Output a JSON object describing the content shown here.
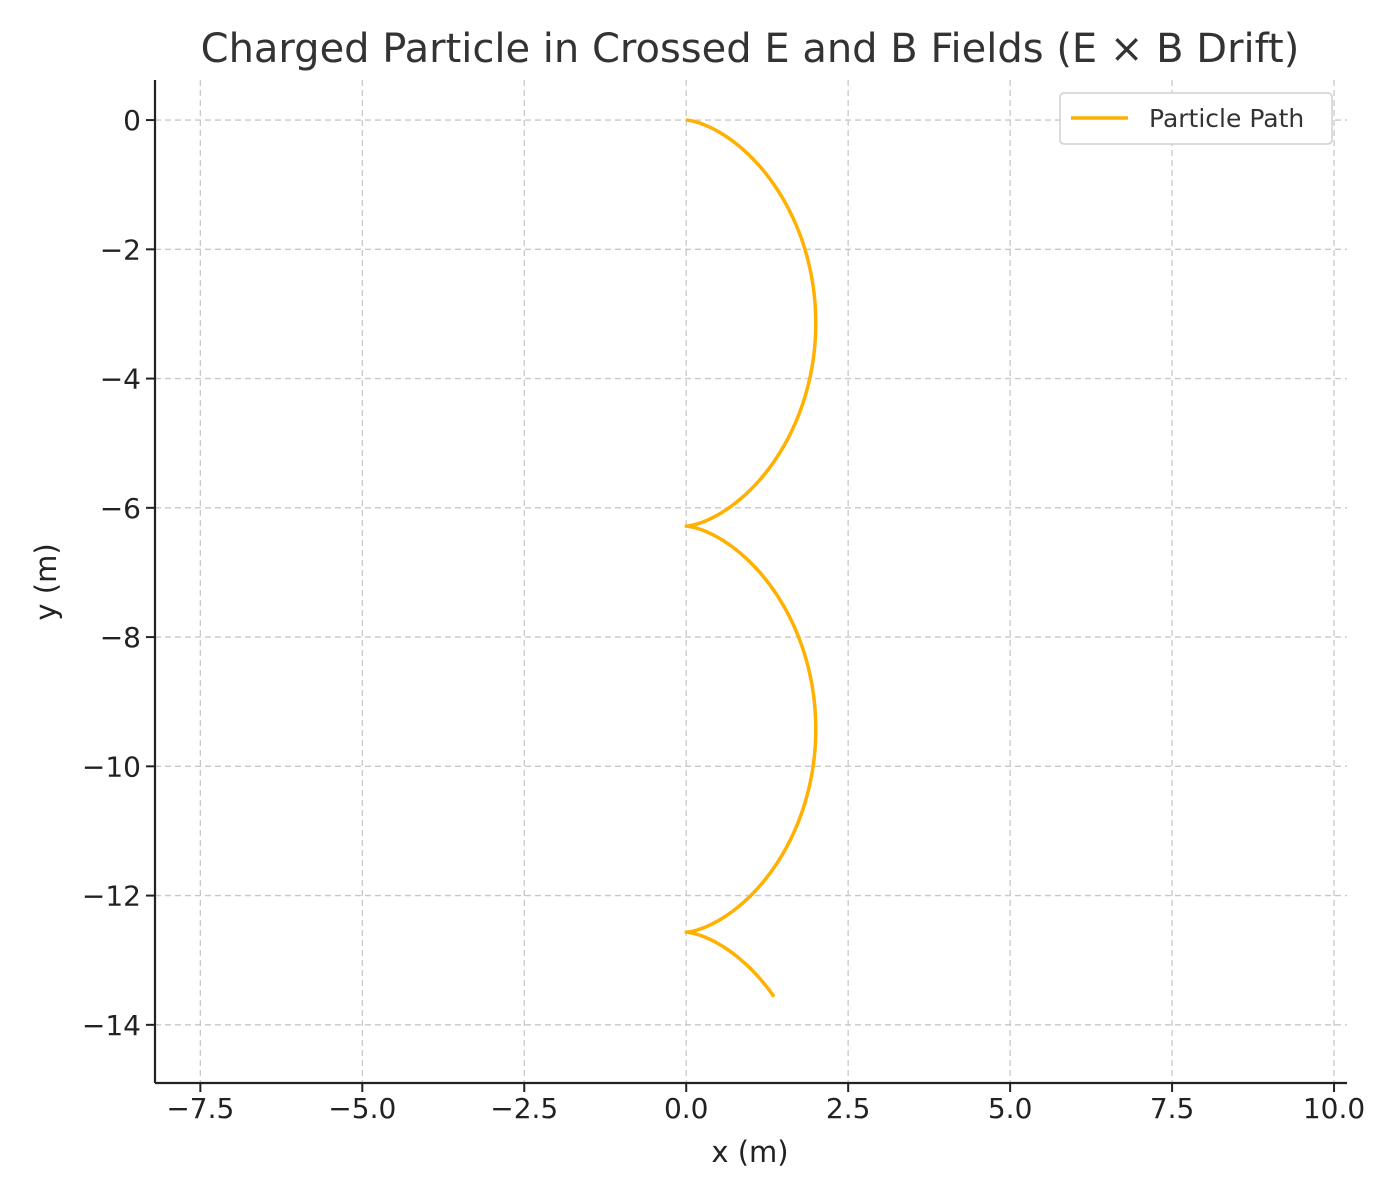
{
  "chart_data": {
    "type": "line",
    "title": "Charged Particle in Crossed E and B Fields (E × B Drift)",
    "xlabel": "x (m)",
    "ylabel": "y (m)",
    "xlim": [
      -8.2,
      10.2
    ],
    "ylim": [
      -14.9,
      0.62
    ],
    "xticks": [
      -7.5,
      -5.0,
      -2.5,
      0.0,
      2.5,
      5.0,
      7.5,
      10.0
    ],
    "xtick_labels": [
      "−7.5",
      "−5.0",
      "−2.5",
      "0.0",
      "2.5",
      "5.0",
      "7.5",
      "10.0"
    ],
    "yticks": [
      0,
      -2,
      -4,
      -6,
      -8,
      -10,
      -12,
      -14
    ],
    "ytick_labels": [
      "0",
      "−2",
      "−4",
      "−6",
      "−8",
      "−10",
      "−12",
      "−14"
    ],
    "grid": true,
    "legend_position": "top-right",
    "series": [
      {
        "name": "Particle Path",
        "color": "#FFB000",
        "description": "cycloid x = 1 - cos(t), y = -(t - sin(t)), t from 0 to 14.5",
        "param_t_max": 14.5
      }
    ]
  }
}
